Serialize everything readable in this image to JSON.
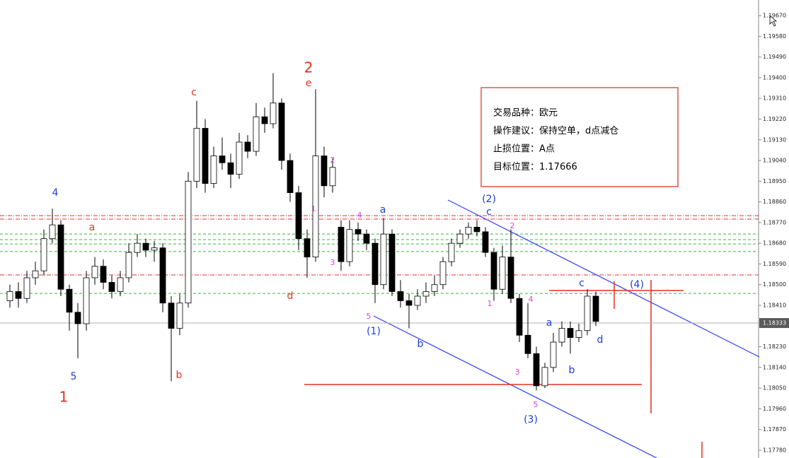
{
  "chart_data": {
    "type": "candlestick",
    "ylim": [
      1.17746,
      1.19738
    ],
    "yticks": [
      {
        "value": 1.1967,
        "label": "1.19670"
      },
      {
        "value": 1.1958,
        "label": "1.19580"
      },
      {
        "value": 1.1949,
        "label": "1.19490"
      },
      {
        "value": 1.194,
        "label": "1.19400"
      },
      {
        "value": 1.1931,
        "label": "1.19310"
      },
      {
        "value": 1.1922,
        "label": "1.19220"
      },
      {
        "value": 1.1913,
        "label": "1.19130"
      },
      {
        "value": 1.1904,
        "label": "1.19040"
      },
      {
        "value": 1.1895,
        "label": "1.18950"
      },
      {
        "value": 1.1886,
        "label": "1.18860"
      },
      {
        "value": 1.1877,
        "label": "1.18770"
      },
      {
        "value": 1.1868,
        "label": "1.18680"
      },
      {
        "value": 1.1859,
        "label": "1.18590"
      },
      {
        "value": 1.185,
        "label": "1.18500"
      },
      {
        "value": 1.1841,
        "label": "1.18410"
      },
      {
        "value": 1.1823,
        "label": "1.18230"
      },
      {
        "value": 1.1814,
        "label": "1.18140"
      },
      {
        "value": 1.1805,
        "label": "1.18050"
      },
      {
        "value": 1.1796,
        "label": "1.17960"
      },
      {
        "value": 1.1787,
        "label": "1.17870"
      },
      {
        "value": 1.1778,
        "label": "1.17780"
      }
    ],
    "current_price": {
      "value": 1.18333,
      "label": "1.18333"
    },
    "open": [
      1.1843,
      1.1847,
      1.1844,
      1.1853,
      1.1856,
      1.187,
      1.1876,
      1.1848,
      1.1838,
      1.1833,
      1.1853,
      1.1858,
      1.1851,
      1.1847,
      1.1853,
      1.1864,
      1.1868,
      1.1865,
      1.1866,
      1.1842,
      1.1831,
      1.1842,
      1.1895,
      1.1918,
      1.1894,
      1.1906,
      1.1903,
      1.1898,
      1.1912,
      1.1908,
      1.1923,
      1.192,
      1.1929,
      1.1904,
      1.189,
      1.187,
      1.1862,
      1.1906,
      1.1893,
      1.1875,
      1.186,
      1.1874,
      1.1872,
      1.1868,
      1.185,
      1.1872,
      1.1847,
      1.1843,
      1.1841,
      1.1845,
      1.1847,
      1.185,
      1.186,
      1.1868,
      1.1872,
      1.1875,
      1.1873,
      1.1864,
      1.1848,
      1.1862,
      1.1844,
      1.1828,
      1.182,
      1.1806,
      1.1814,
      1.1825,
      1.1831,
      1.1827,
      1.183,
      1.1845
    ],
    "high": [
      1.185,
      1.1851,
      1.1856,
      1.186,
      1.1874,
      1.1883,
      1.1878,
      1.185,
      1.1842,
      1.1856,
      1.1862,
      1.1861,
      1.1854,
      1.1856,
      1.1868,
      1.1872,
      1.187,
      1.1869,
      1.1868,
      1.1845,
      1.1846,
      1.1899,
      1.193,
      1.1922,
      1.191,
      1.1914,
      1.1907,
      1.1916,
      1.1915,
      1.1929,
      1.1927,
      1.1942,
      1.1931,
      1.1907,
      1.1893,
      1.1874,
      1.1935,
      1.191,
      1.1905,
      1.1878,
      1.1878,
      1.1877,
      1.1874,
      1.187,
      1.1879,
      1.1874,
      1.1852,
      1.1846,
      1.1848,
      1.1851,
      1.1854,
      1.1862,
      1.187,
      1.1874,
      1.1877,
      1.1878,
      1.1875,
      1.1866,
      1.1867,
      1.1874,
      1.1846,
      1.1842,
      1.1823,
      1.1816,
      1.1829,
      1.1834,
      1.1834,
      1.1833,
      1.1848,
      1.1847
    ],
    "low": [
      1.184,
      1.184,
      1.1842,
      1.185,
      1.1854,
      1.1868,
      1.1845,
      1.183,
      1.1818,
      1.183,
      1.185,
      1.1848,
      1.1844,
      1.1845,
      1.1851,
      1.1862,
      1.1862,
      1.186,
      1.1838,
      1.1808,
      1.1828,
      1.184,
      1.1892,
      1.189,
      1.1892,
      1.19,
      1.1892,
      1.1896,
      1.1905,
      1.1906,
      1.1916,
      1.1918,
      1.19,
      1.1886,
      1.1865,
      1.1853,
      1.186,
      1.1888,
      1.189,
      1.1856,
      1.1858,
      1.1869,
      1.1865,
      1.1842,
      1.1848,
      1.1845,
      1.184,
      1.1831,
      1.1839,
      1.1842,
      1.1845,
      1.1848,
      1.1858,
      1.1866,
      1.187,
      1.1871,
      1.1862,
      1.1843,
      1.1846,
      1.1842,
      1.1825,
      1.1818,
      1.1804,
      1.1805,
      1.1812,
      1.1823,
      1.182,
      1.1825,
      1.1828,
      1.1832
    ],
    "close": [
      1.1847,
      1.1844,
      1.1853,
      1.1856,
      1.187,
      1.1876,
      1.1848,
      1.1838,
      1.1833,
      1.1853,
      1.1858,
      1.1851,
      1.1847,
      1.1853,
      1.1864,
      1.1868,
      1.1865,
      1.1866,
      1.1842,
      1.1831,
      1.1842,
      1.1895,
      1.1918,
      1.1894,
      1.1906,
      1.1903,
      1.1898,
      1.1912,
      1.1908,
      1.1923,
      1.192,
      1.1929,
      1.1904,
      1.189,
      1.187,
      1.1862,
      1.1906,
      1.1893,
      1.1901,
      1.186,
      1.1874,
      1.1872,
      1.1868,
      1.185,
      1.1872,
      1.1847,
      1.1843,
      1.1841,
      1.1845,
      1.1847,
      1.185,
      1.186,
      1.1868,
      1.1872,
      1.1875,
      1.1873,
      1.1864,
      1.1848,
      1.1862,
      1.1844,
      1.1828,
      1.182,
      1.1806,
      1.1814,
      1.1825,
      1.1831,
      1.1827,
      1.183,
      1.1845,
      1.1834
    ],
    "hlines": [
      {
        "value": 1.188,
        "color": "#e03030"
      },
      {
        "value": 1.18785,
        "color": "#e03030"
      },
      {
        "value": 1.18542,
        "color": "#e03030"
      },
      {
        "value": 1.1872,
        "color": "#3cb43c"
      },
      {
        "value": 1.18696,
        "color": "#3cb43c"
      },
      {
        "value": 1.18677,
        "color": "#3cb43c"
      },
      {
        "value": 1.18644,
        "color": "#3cb43c"
      },
      {
        "value": 1.18462,
        "color": "#3cb43c"
      }
    ],
    "annotations": [
      {
        "text": "4",
        "color": "#1a3ee0"
      },
      {
        "text": "a",
        "color": "#e53020"
      },
      {
        "text": "5",
        "color": "#1a3ee0"
      },
      {
        "text": "1",
        "color": "#e53020"
      },
      {
        "text": "b",
        "color": "#e53020"
      },
      {
        "text": "c",
        "color": "#e53020"
      },
      {
        "text": "2",
        "color": "#e53020"
      },
      {
        "text": "e",
        "color": "#e53020"
      },
      {
        "text": "d",
        "color": "#e53020"
      },
      {
        "text": "1",
        "color": "#e040e0"
      },
      {
        "text": "2",
        "color": "#e040e0"
      },
      {
        "text": "4",
        "color": "#e040e0"
      },
      {
        "text": "3",
        "color": "#e040e0"
      },
      {
        "text": "a",
        "color": "#1a3ee0"
      },
      {
        "text": "5",
        "color": "#e040e0"
      },
      {
        "text": "(1)",
        "color": "#1a3ee0"
      },
      {
        "text": "b",
        "color": "#1a3ee0"
      },
      {
        "text": "(2)",
        "color": "#1a3ee0"
      },
      {
        "text": "c",
        "color": "#1a3ee0"
      },
      {
        "text": "2",
        "color": "#e040e0"
      },
      {
        "text": "1",
        "color": "#e040e0"
      },
      {
        "text": "4",
        "color": "#e040e0"
      },
      {
        "text": "a",
        "color": "#1a3ee0"
      },
      {
        "text": "c",
        "color": "#1a3ee0"
      },
      {
        "text": "(4)",
        "color": "#1a3ee0"
      },
      {
        "text": "d",
        "color": "#1a3ee0"
      },
      {
        "text": "b",
        "color": "#1a3ee0"
      },
      {
        "text": "3",
        "color": "#e040e0"
      },
      {
        "text": "5",
        "color": "#e040e0"
      },
      {
        "text": "(3)",
        "color": "#1a3ee0"
      }
    ],
    "info_box": [
      "交易品种：欧元",
      "操作建议：保持空单，d点减仓",
      "止损位置：A点",
      "目标位置：1.17666"
    ]
  }
}
